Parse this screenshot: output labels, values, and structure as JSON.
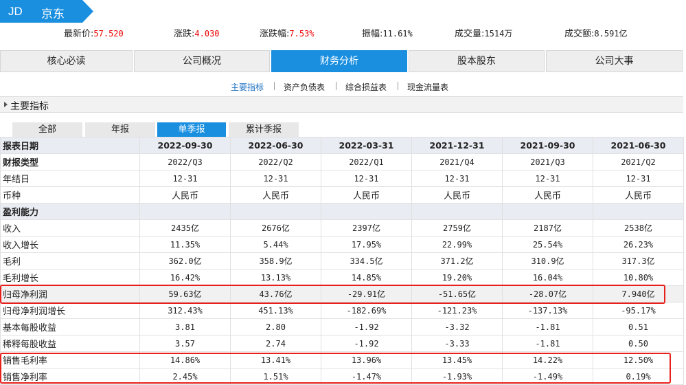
{
  "header": {
    "ticker": "JD",
    "company": "京东",
    "banner_color": "#1a8fe0"
  },
  "quote": {
    "latest_label": "最新价:",
    "latest_value": "57.520",
    "change_label": "涨跌:",
    "change_value": "4.030",
    "pct_label": "涨跌幅:",
    "pct_value": "7.53%",
    "amplitude_label": "振幅:",
    "amplitude_value": "11.61%",
    "volume_label": "成交量:",
    "volume_value": "1514万",
    "turnover_label": "成交额:",
    "turnover_value": "8.591亿",
    "up_color": "#e00000"
  },
  "tabs": [
    {
      "label": "核心必读"
    },
    {
      "label": "公司概况"
    },
    {
      "label": "财务分析",
      "active": true
    },
    {
      "label": "股本股东"
    },
    {
      "label": "公司大事"
    }
  ],
  "subnav": [
    {
      "label": "主要指标",
      "active": true
    },
    {
      "label": "资产负债表"
    },
    {
      "label": "综合损益表"
    },
    {
      "label": "现金流量表"
    }
  ],
  "section": {
    "title": "主要指标"
  },
  "period_filter": [
    {
      "label": "全部"
    },
    {
      "label": "年报"
    },
    {
      "label": "单季报",
      "active": true
    },
    {
      "label": "累计季报"
    }
  ],
  "table": {
    "header": [
      "报表日期",
      "2022-09-30",
      "2022-06-30",
      "2022-03-31",
      "2021-12-31",
      "2021-09-30",
      "2021-06-30"
    ],
    "rows": [
      {
        "label": "财报类型",
        "bold": true,
        "values": [
          "2022/Q3",
          "2022/Q2",
          "2022/Q1",
          "2021/Q4",
          "2021/Q3",
          "2021/Q2"
        ]
      },
      {
        "label": "年结日",
        "values": [
          "12-31",
          "12-31",
          "12-31",
          "12-31",
          "12-31",
          "12-31"
        ]
      },
      {
        "label": "币种",
        "cn": true,
        "values": [
          "人民币",
          "人民币",
          "人民币",
          "人民币",
          "人民币",
          "人民币"
        ]
      },
      {
        "label": "盈利能力",
        "group": true,
        "values": [
          "",
          "",
          "",
          "",
          "",
          ""
        ]
      },
      {
        "label": "收入",
        "values": [
          "2435亿",
          "2676亿",
          "2397亿",
          "2759亿",
          "2187亿",
          "2538亿"
        ]
      },
      {
        "label": "收入增长",
        "values": [
          "11.35%",
          "5.44%",
          "17.95%",
          "22.99%",
          "25.54%",
          "26.23%"
        ]
      },
      {
        "label": "毛利",
        "values": [
          "362.0亿",
          "358.9亿",
          "334.5亿",
          "371.2亿",
          "310.9亿",
          "317.3亿"
        ]
      },
      {
        "label": "毛利增长",
        "values": [
          "16.42%",
          "13.13%",
          "14.85%",
          "19.20%",
          "16.04%",
          "10.80%"
        ]
      },
      {
        "label": "归母净利润",
        "hl": true,
        "values": [
          "59.63亿",
          "43.76亿",
          "-29.91亿",
          "-51.65亿",
          "-28.07亿",
          "7.940亿"
        ]
      },
      {
        "label": "归母净利润增长",
        "values": [
          "312.43%",
          "451.13%",
          "-182.69%",
          "-121.23%",
          "-137.13%",
          "-95.17%"
        ]
      },
      {
        "label": "基本每股收益",
        "values": [
          "3.81",
          "2.80",
          "-1.92",
          "-3.32",
          "-1.81",
          "0.51"
        ]
      },
      {
        "label": "稀释每股收益",
        "values": [
          "3.57",
          "2.74",
          "-1.92",
          "-3.33",
          "-1.81",
          "0.50"
        ]
      },
      {
        "label": "销售毛利率",
        "values": [
          "14.86%",
          "13.41%",
          "13.96%",
          "13.45%",
          "14.22%",
          "12.50%"
        ]
      },
      {
        "label": "销售净利率",
        "values": [
          "2.45%",
          "1.51%",
          "-1.47%",
          "-1.93%",
          "-1.49%",
          "0.19%"
        ]
      }
    ]
  },
  "annotation_color": "#e8201c"
}
